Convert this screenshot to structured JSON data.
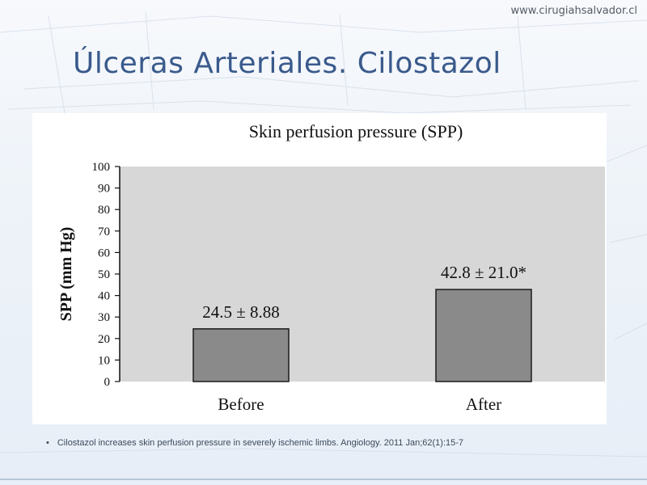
{
  "site": {
    "url": "www.cirugiahsalvador.cl"
  },
  "slide": {
    "title": "Úlceras Arteriales. Cilostazol"
  },
  "footnote": {
    "bullet": "•",
    "text": "Cilostazol increases skin perfusion pressure in severely ischemic limbs. Angiology. 2011 Jan;62(1):15-7"
  },
  "chart_data": {
    "type": "bar",
    "title": "Skin perfusion pressure (SPP)",
    "ylabel": "SPP (mm Hg)",
    "xlabel": "",
    "categories": [
      "Before",
      "After"
    ],
    "values": [
      24.5,
      42.8
    ],
    "data_labels": [
      "24.5 ± 8.88",
      "42.8 ± 21.0*"
    ],
    "ylim": [
      0,
      100
    ],
    "yticks": [
      "0",
      "10",
      "20",
      "30",
      "40",
      "50",
      "60",
      "70",
      "80",
      "90",
      "100"
    ],
    "grid": false,
    "legend": "none",
    "colors": {
      "plot_bg": "#d7d7d7",
      "bar": "#8a8a8a",
      "bar_stroke": "#1a1a1a"
    }
  }
}
